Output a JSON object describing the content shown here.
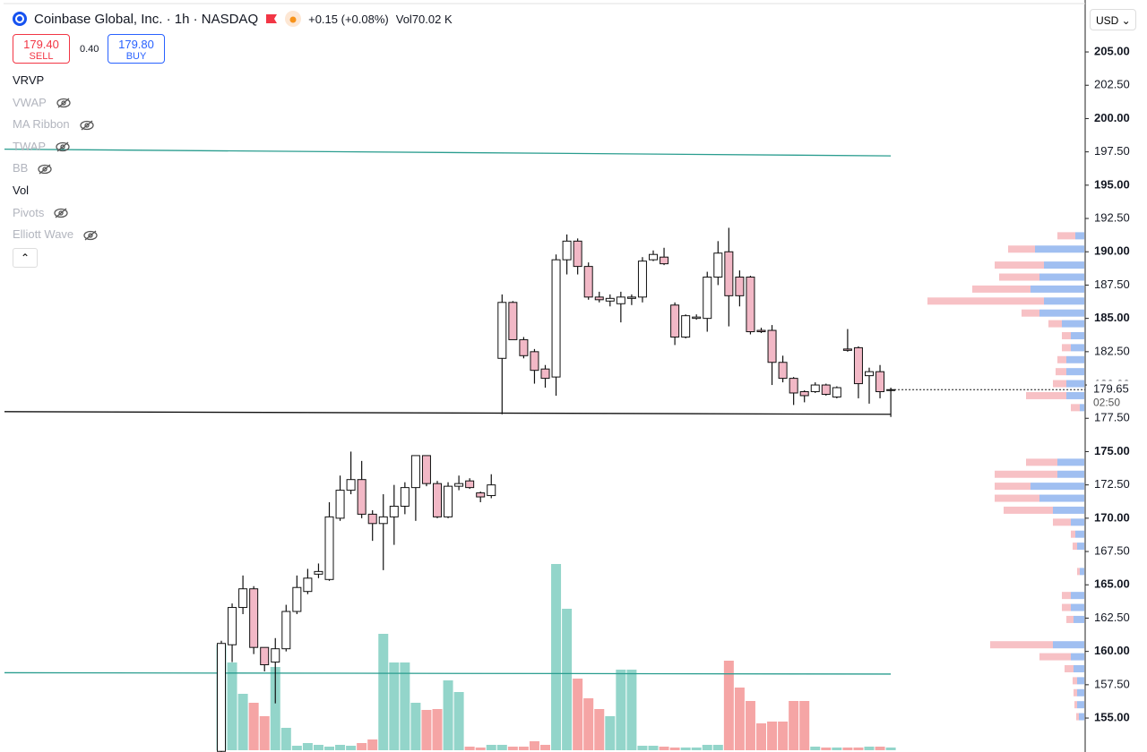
{
  "header": {
    "title": "Coinbase Global, Inc. · 1h · NASDAQ",
    "change": "+0.15 (+0.08%)",
    "vol_label": "Vol",
    "vol_value": "70.02 K"
  },
  "trade": {
    "sell_price": "179.40",
    "sell_label": "SELL",
    "spread": "0.40",
    "buy_price": "179.80",
    "buy_label": "BUY"
  },
  "indicators": [
    {
      "name": "VRVP",
      "visible": true
    },
    {
      "name": "VWAP",
      "visible": false
    },
    {
      "name": "MA Ribbon",
      "visible": false
    },
    {
      "name": "TWAP",
      "visible": false
    },
    {
      "name": "BB",
      "visible": false
    },
    {
      "name": "Vol",
      "visible": true
    },
    {
      "name": "Pivots",
      "visible": false
    },
    {
      "name": "Elliott Wave",
      "visible": false
    }
  ],
  "currency": "USD",
  "chart_data": {
    "type": "candlestick",
    "ylim": [
      152.45,
      208.9
    ],
    "yticks": [
      {
        "value": 155,
        "label": "155.00"
      },
      {
        "value": 157.5,
        "label": "157.50"
      },
      {
        "value": 160,
        "label": "160.00"
      },
      {
        "value": 162.5,
        "label": "162.50"
      },
      {
        "value": 165,
        "label": "165.00"
      },
      {
        "value": 167.5,
        "label": "167.50"
      },
      {
        "value": 170,
        "label": "170.00"
      },
      {
        "value": 172.5,
        "label": "172.50"
      },
      {
        "value": 175,
        "label": "175.00"
      },
      {
        "value": 177.5,
        "label": "177.50"
      },
      {
        "value": 180,
        "label": "180.00"
      },
      {
        "value": 182.5,
        "label": "182.50"
      },
      {
        "value": 185,
        "label": "185.00"
      },
      {
        "value": 187.5,
        "label": "187.50"
      },
      {
        "value": 190,
        "label": "190.00"
      },
      {
        "value": 192.5,
        "label": "192.50"
      },
      {
        "value": 195,
        "label": "195.00"
      },
      {
        "value": 197.5,
        "label": "197.50"
      },
      {
        "value": 200,
        "label": "200.00"
      },
      {
        "value": 202.5,
        "label": "202.50"
      },
      {
        "value": 205,
        "label": "205.00"
      }
    ],
    "up_color": "#ffffff",
    "down_color": "#f2b8c6",
    "volume_up_color": "#93d5ca",
    "volume_down_color": "#f5a5a5",
    "open": [
      152.5,
      160.5,
      163.3,
      164.7,
      160.3,
      159.2,
      160.2,
      163.0,
      164.5,
      165.8,
      165.4,
      170.0,
      172.1,
      172.9,
      170.3,
      169.6,
      170.1,
      170.9,
      172.3,
      174.7,
      172.6,
      170.1,
      172.4,
      172.8,
      171.9,
      171.7,
      182.0,
      186.2,
      183.4,
      182.5,
      181.2,
      180.6,
      189.4,
      190.8,
      188.9,
      186.6,
      186.3,
      186.1,
      186.5,
      186.6,
      189.4,
      189.6,
      186.0,
      183.6,
      185.0,
      185.0,
      188.1,
      190.0,
      188.1,
      188.1,
      184.1,
      184.1,
      181.7,
      180.5,
      179.5,
      179.5,
      180.0,
      179.1,
      182.7,
      182.8,
      180.7,
      181.0,
      179.6
    ],
    "high": [
      160.8,
      163.6,
      165.7,
      164.9,
      160.3,
      161.0,
      163.5,
      165.7,
      166.2,
      166.6,
      171.2,
      173.2,
      175.0,
      174.3,
      170.6,
      171.8,
      172.5,
      172.7,
      174.7,
      174.7,
      172.8,
      172.7,
      173.2,
      173.0,
      172.0,
      173.3,
      186.8,
      186.3,
      183.6,
      182.7,
      181.5,
      189.8,
      191.3,
      191.0,
      189.2,
      187.0,
      186.8,
      187.0,
      186.8,
      189.6,
      190.1,
      190.3,
      186.2,
      185.3,
      185.3,
      188.5,
      190.8,
      191.8,
      188.6,
      188.2,
      184.3,
      184.5,
      182.2,
      180.6,
      179.6,
      180.2,
      180.1,
      179.9,
      184.2,
      182.9,
      181.3,
      181.5,
      179.8
    ],
    "low": [
      152.0,
      159.2,
      162.8,
      159.8,
      158.5,
      156.1,
      160.0,
      162.8,
      164.3,
      165.5,
      165.3,
      169.8,
      171.8,
      170.0,
      168.3,
      166.1,
      168.0,
      170.3,
      169.8,
      172.4,
      170.0,
      170.0,
      172.1,
      172.2,
      171.2,
      171.5,
      177.8,
      183.4,
      182.0,
      180.1,
      179.8,
      179.2,
      188.3,
      188.3,
      186.4,
      186.2,
      185.9,
      184.7,
      186.0,
      186.2,
      189.3,
      189.0,
      183.0,
      183.5,
      184.9,
      184.0,
      187.5,
      184.4,
      185.9,
      183.8,
      183.9,
      180.0,
      180.2,
      178.5,
      178.7,
      179.4,
      179.2,
      179.0,
      182.5,
      179.0,
      178.6,
      179.0,
      177.6
    ],
    "close": [
      160.6,
      163.3,
      164.7,
      160.3,
      159.0,
      160.2,
      163.0,
      164.8,
      165.5,
      166.0,
      170.1,
      172.1,
      172.9,
      170.3,
      169.6,
      170.1,
      170.9,
      172.3,
      174.7,
      172.6,
      170.1,
      172.4,
      172.6,
      172.3,
      171.6,
      172.5,
      186.2,
      183.4,
      182.2,
      181.1,
      180.5,
      189.4,
      190.8,
      188.9,
      186.6,
      186.4,
      186.5,
      186.6,
      186.6,
      189.3,
      189.8,
      189.1,
      183.6,
      185.2,
      185.1,
      188.1,
      189.9,
      186.7,
      186.7,
      184.0,
      184.0,
      181.7,
      180.5,
      179.4,
      179.2,
      180.0,
      179.3,
      179.8,
      182.6,
      180.1,
      181.0,
      179.5,
      179.65
    ],
    "volume": [
      118,
      98,
      63,
      53,
      38,
      93,
      25,
      5,
      8,
      6,
      4,
      6,
      5,
      8,
      12,
      130,
      98,
      98,
      53,
      45,
      46,
      78,
      65,
      4,
      3,
      6,
      6,
      4,
      4,
      10,
      6,
      208,
      158,
      80,
      58,
      46,
      38,
      90,
      90,
      5,
      5,
      4,
      3,
      3,
      3,
      6,
      6,
      100,
      70,
      55,
      30,
      32,
      32,
      55,
      55,
      4,
      3,
      3,
      3,
      3,
      4,
      4,
      3
    ],
    "price_tag": {
      "value": 179.65,
      "label": "179.65"
    },
    "countdown": "02:50",
    "lines": [
      {
        "color": "#2a9d8f",
        "values": [
          197.7,
          197.2
        ]
      },
      {
        "color": "#111111",
        "values": [
          178.0,
          177.8
        ]
      },
      {
        "color": "#2a9d8f",
        "values": [
          158.4,
          158.3
        ]
      }
    ],
    "profile_color_buy": "#8fb4ef",
    "profile_color_sell": "#f3a6ad",
    "profile": {
      "price": [
        191.2,
        190.2,
        189.0,
        188.1,
        187.2,
        186.3,
        185.4,
        184.6,
        183.7,
        182.8,
        181.9,
        181.0,
        180.1,
        179.2,
        178.3,
        174.2,
        173.3,
        172.4,
        171.5,
        170.6,
        169.7,
        168.8,
        167.9,
        166.0,
        164.2,
        163.3,
        162.4,
        160.5,
        159.6,
        158.7,
        157.8,
        156.9,
        156.0,
        155.1
      ],
      "buy": [
        10,
        55,
        45,
        50,
        60,
        45,
        50,
        25,
        15,
        15,
        20,
        20,
        20,
        20,
        5,
        30,
        30,
        60,
        50,
        35,
        15,
        10,
        8,
        5,
        15,
        15,
        12,
        35,
        15,
        12,
        8,
        8,
        8,
        6
      ],
      "sell": [
        20,
        30,
        55,
        45,
        65,
        130,
        20,
        15,
        10,
        10,
        10,
        12,
        15,
        45,
        10,
        35,
        70,
        40,
        50,
        55,
        20,
        5,
        5,
        3,
        10,
        10,
        8,
        70,
        35,
        10,
        5,
        4,
        3,
        3
      ]
    }
  }
}
